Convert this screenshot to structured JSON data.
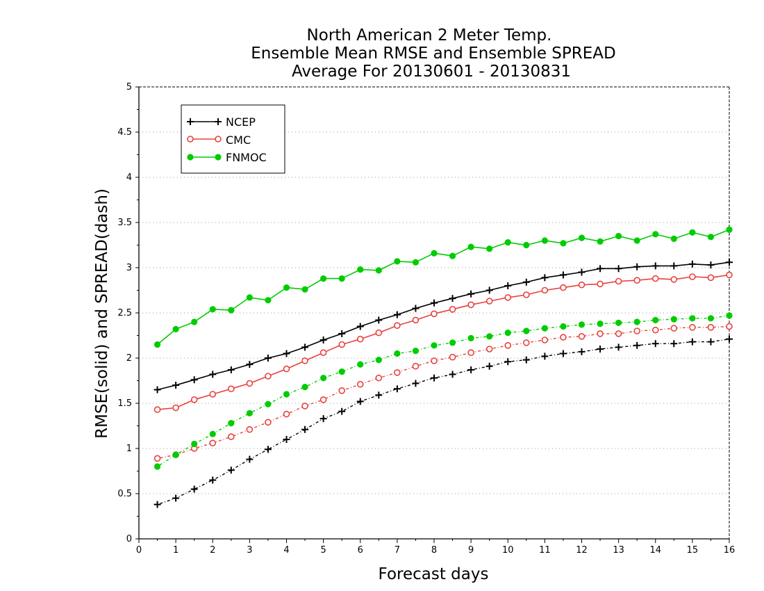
{
  "chart_data": {
    "type": "line",
    "title_lines": [
      "North American 2 Meter Temp.",
      "Ensemble Mean RMSE and Ensemble SPREAD",
      "Average For 20130601 - 20130831"
    ],
    "xlabel": "Forecast days",
    "ylabel": "RMSE(solid) and SPREAD(dash)",
    "xlim": [
      0,
      16
    ],
    "ylim": [
      0,
      5
    ],
    "x_ticks": [
      "0",
      "1",
      "2",
      "3",
      "4",
      "5",
      "6",
      "7",
      "8",
      "9",
      "10",
      "11",
      "12",
      "13",
      "14",
      "15",
      "16"
    ],
    "y_ticks": [
      "0",
      "0.5",
      "1",
      "1.5",
      "2",
      "2.5",
      "3",
      "3.5",
      "4",
      "4.5",
      "5"
    ],
    "grid": "horizontal dotted",
    "legend_position": "top-left",
    "x": [
      0.5,
      1,
      1.5,
      2,
      2.5,
      3,
      3.5,
      4,
      4.5,
      5,
      5.5,
      6,
      6.5,
      7,
      7.5,
      8,
      8.5,
      9,
      9.5,
      10,
      10.5,
      11,
      11.5,
      12,
      12.5,
      13,
      13.5,
      14,
      14.5,
      15,
      15.5,
      16
    ],
    "series": [
      {
        "name": "NCEP",
        "kind": "rmse",
        "color": "#000000",
        "marker": "plus",
        "values": [
          1.65,
          1.7,
          1.76,
          1.82,
          1.87,
          1.93,
          2.0,
          2.05,
          2.12,
          2.2,
          2.27,
          2.35,
          2.42,
          2.48,
          2.55,
          2.61,
          2.66,
          2.71,
          2.75,
          2.8,
          2.84,
          2.89,
          2.92,
          2.95,
          2.99,
          2.99,
          3.01,
          3.02,
          3.02,
          3.04,
          3.03,
          3.06
        ]
      },
      {
        "name": "CMC",
        "kind": "rmse",
        "color": "#e8413c",
        "marker": "open-circle",
        "values": [
          1.43,
          1.45,
          1.54,
          1.6,
          1.66,
          1.72,
          1.8,
          1.88,
          1.97,
          2.06,
          2.15,
          2.21,
          2.28,
          2.36,
          2.42,
          2.49,
          2.54,
          2.59,
          2.63,
          2.67,
          2.7,
          2.75,
          2.78,
          2.81,
          2.82,
          2.85,
          2.86,
          2.88,
          2.87,
          2.9,
          2.89,
          2.92
        ]
      },
      {
        "name": "FNMOC",
        "kind": "rmse",
        "color": "#00cc00",
        "marker": "filled-circle",
        "values": [
          2.15,
          2.32,
          2.4,
          2.54,
          2.53,
          2.67,
          2.64,
          2.78,
          2.76,
          2.88,
          2.88,
          2.98,
          2.97,
          3.07,
          3.06,
          3.16,
          3.13,
          3.23,
          3.21,
          3.28,
          3.25,
          3.3,
          3.27,
          3.33,
          3.29,
          3.35,
          3.3,
          3.37,
          3.32,
          3.39,
          3.34,
          3.42
        ]
      },
      {
        "name": "NCEP",
        "kind": "spread",
        "color": "#000000",
        "marker": "plus",
        "values": [
          0.38,
          0.45,
          0.55,
          0.65,
          0.76,
          0.88,
          0.99,
          1.1,
          1.21,
          1.33,
          1.41,
          1.52,
          1.59,
          1.66,
          1.72,
          1.78,
          1.82,
          1.87,
          1.91,
          1.96,
          1.98,
          2.02,
          2.05,
          2.07,
          2.1,
          2.12,
          2.14,
          2.16,
          2.16,
          2.18,
          2.18,
          2.21
        ]
      },
      {
        "name": "CMC",
        "kind": "spread",
        "color": "#e8413c",
        "marker": "open-circle",
        "values": [
          0.89,
          0.93,
          1.0,
          1.06,
          1.13,
          1.21,
          1.29,
          1.38,
          1.47,
          1.54,
          1.64,
          1.71,
          1.78,
          1.84,
          1.91,
          1.97,
          2.01,
          2.06,
          2.1,
          2.14,
          2.17,
          2.2,
          2.23,
          2.24,
          2.27,
          2.27,
          2.3,
          2.31,
          2.33,
          2.34,
          2.34,
          2.35
        ]
      },
      {
        "name": "FNMOC",
        "kind": "spread",
        "color": "#00cc00",
        "marker": "filled-circle",
        "values": [
          0.8,
          0.93,
          1.05,
          1.16,
          1.28,
          1.39,
          1.49,
          1.6,
          1.68,
          1.78,
          1.85,
          1.93,
          1.98,
          2.05,
          2.08,
          2.14,
          2.17,
          2.22,
          2.24,
          2.28,
          2.3,
          2.33,
          2.35,
          2.37,
          2.38,
          2.39,
          2.4,
          2.42,
          2.43,
          2.44,
          2.44,
          2.47
        ]
      }
    ],
    "legend": [
      {
        "label": "NCEP",
        "color": "#000000",
        "marker": "plus"
      },
      {
        "label": "CMC",
        "color": "#e8413c",
        "marker": "open-circle"
      },
      {
        "label": "FNMOC",
        "color": "#00cc00",
        "marker": "filled-circle"
      }
    ]
  }
}
